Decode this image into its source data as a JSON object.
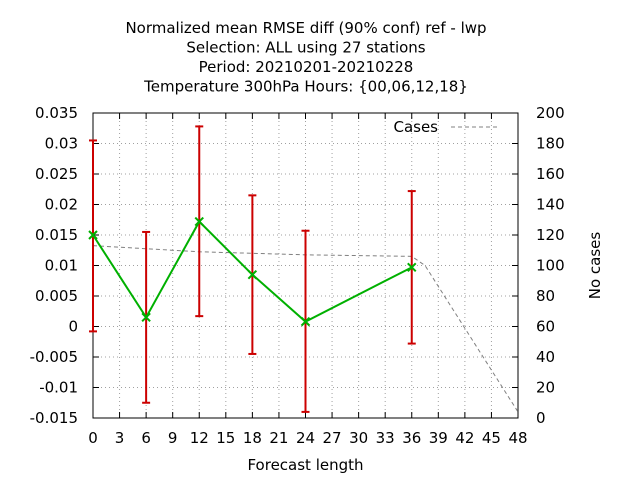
{
  "chart_data": {
    "type": "line",
    "title_lines": [
      "Normalized mean RMSE diff (90% conf) ref - lwp",
      "Selection: ALL using    27 stations",
      "Period: 20210201-20210228",
      "Temperature 300hPa   Hours: {00,06,12,18}"
    ],
    "xlabel": "Forecast length",
    "y2label": "No cases",
    "xlim": [
      0,
      48
    ],
    "ylim": [
      -0.015,
      0.035
    ],
    "y2lim": [
      0,
      200
    ],
    "x_ticks": [
      0,
      3,
      6,
      9,
      12,
      15,
      18,
      21,
      24,
      27,
      30,
      33,
      36,
      39,
      42,
      45,
      48
    ],
    "y_ticks": [
      -0.015,
      -0.01,
      -0.005,
      0,
      0.005,
      0.01,
      0.015,
      0.02,
      0.025,
      0.03,
      0.035
    ],
    "y_tick_labels": [
      "-0.015",
      "-0.01",
      "-0.005",
      "0",
      "0.005",
      "0.01",
      "0.015",
      "0.02",
      "0.025",
      "0.03",
      "0.035"
    ],
    "y2_ticks": [
      0,
      20,
      40,
      60,
      80,
      100,
      120,
      140,
      160,
      180,
      200
    ],
    "grid": true,
    "legend_position": "top-right",
    "series": [
      {
        "x": [
          0,
          6,
          12,
          18,
          24,
          36
        ],
        "y": [
          0.015,
          0.0015,
          0.0172,
          0.0085,
          0.0008,
          0.0097
        ],
        "err_low": [
          -0.0008,
          -0.0125,
          0.0017,
          -0.0045,
          -0.014,
          -0.0028
        ],
        "err_high": [
          0.0305,
          0.0155,
          0.0328,
          0.0215,
          0.0157,
          0.0222
        ],
        "color": "#00b000",
        "error_color": "#cc0000",
        "marker": "x"
      },
      {
        "name": "Cases",
        "axis": "y2",
        "x": [
          0,
          6,
          12,
          18,
          24,
          36,
          37.5,
          48
        ],
        "y": [
          113,
          111,
          109,
          108,
          107,
          106,
          100,
          4
        ],
        "color": "#808080",
        "style": "dashed"
      }
    ]
  }
}
